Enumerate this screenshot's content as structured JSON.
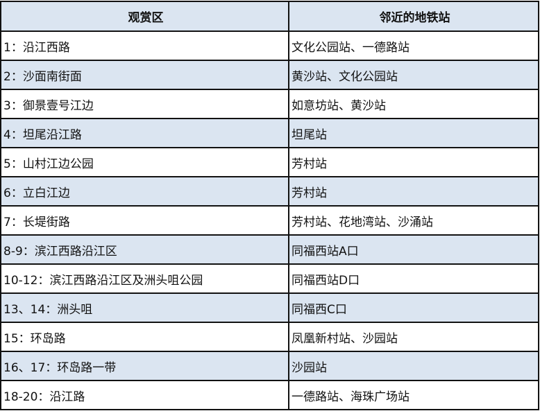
{
  "header": {
    "area": "观赏区",
    "station": "邻近的地铁站"
  },
  "row_color": "#dbe5f1",
  "rows": [
    {
      "area": "1：沿江西路",
      "station": "文化公园站、一德路站"
    },
    {
      "area": "2：沙面南街面",
      "station": "黄沙站、文化公园站"
    },
    {
      "area": "3：御景壹号江边",
      "station": "如意坊站、黄沙站"
    },
    {
      "area": "4：坦尾沿江路",
      "station": "坦尾站"
    },
    {
      "area": "5：山村江边公园",
      "station": "芳村站"
    },
    {
      "area": "6：立白江边",
      "station": "芳村站"
    },
    {
      "area": "7：长堤街路",
      "station": "芳村站、花地湾站、沙涌站"
    },
    {
      "area": "8-9：滨江西路沿江区",
      "station": "同福西站A口"
    },
    {
      "area": "10-12：滨江西路沿江区及洲头咀公园",
      "station": "同福西站D口"
    },
    {
      "area": "13、14：洲头咀",
      "station": "同福西C口"
    },
    {
      "area": "15：环岛路",
      "station": "凤凰新村站、沙园站"
    },
    {
      "area": "16、17：环岛路一带",
      "station": "沙园站"
    },
    {
      "area": "18-20：沿江路",
      "station": "一德路站、海珠广场站"
    }
  ]
}
